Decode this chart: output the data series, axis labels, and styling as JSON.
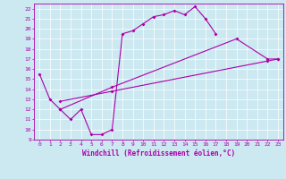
{
  "xlabel": "Windchill (Refroidissement éolien,°C)",
  "bg_color": "#cce8f0",
  "line_color": "#aa00aa",
  "xlim": [
    -0.5,
    23.5
  ],
  "ylim": [
    9,
    22.5
  ],
  "xticks": [
    0,
    1,
    2,
    3,
    4,
    5,
    6,
    7,
    8,
    9,
    10,
    11,
    12,
    13,
    14,
    15,
    16,
    17,
    18,
    19,
    20,
    21,
    22,
    23
  ],
  "yticks": [
    9,
    10,
    11,
    12,
    13,
    14,
    15,
    16,
    17,
    18,
    19,
    20,
    21,
    22
  ],
  "line1_x": [
    0,
    1,
    2,
    3,
    4,
    5,
    6,
    7,
    8,
    9,
    10,
    11,
    12,
    13,
    14,
    15,
    16,
    17
  ],
  "line1_y": [
    15.5,
    13.0,
    12.0,
    11.0,
    12.0,
    9.5,
    9.5,
    10.0,
    19.5,
    19.8,
    20.5,
    21.2,
    21.4,
    21.8,
    21.4,
    22.2,
    21.0,
    19.5
  ],
  "line2_x": [
    2,
    7,
    19,
    22,
    23
  ],
  "line2_y": [
    12.0,
    14.2,
    19.0,
    17.0,
    17.0
  ],
  "line3_x": [
    2,
    7,
    22,
    23
  ],
  "line3_y": [
    12.8,
    13.8,
    16.8,
    17.0
  ],
  "tick_fontsize": 4.5,
  "xlabel_fontsize": 5.5
}
